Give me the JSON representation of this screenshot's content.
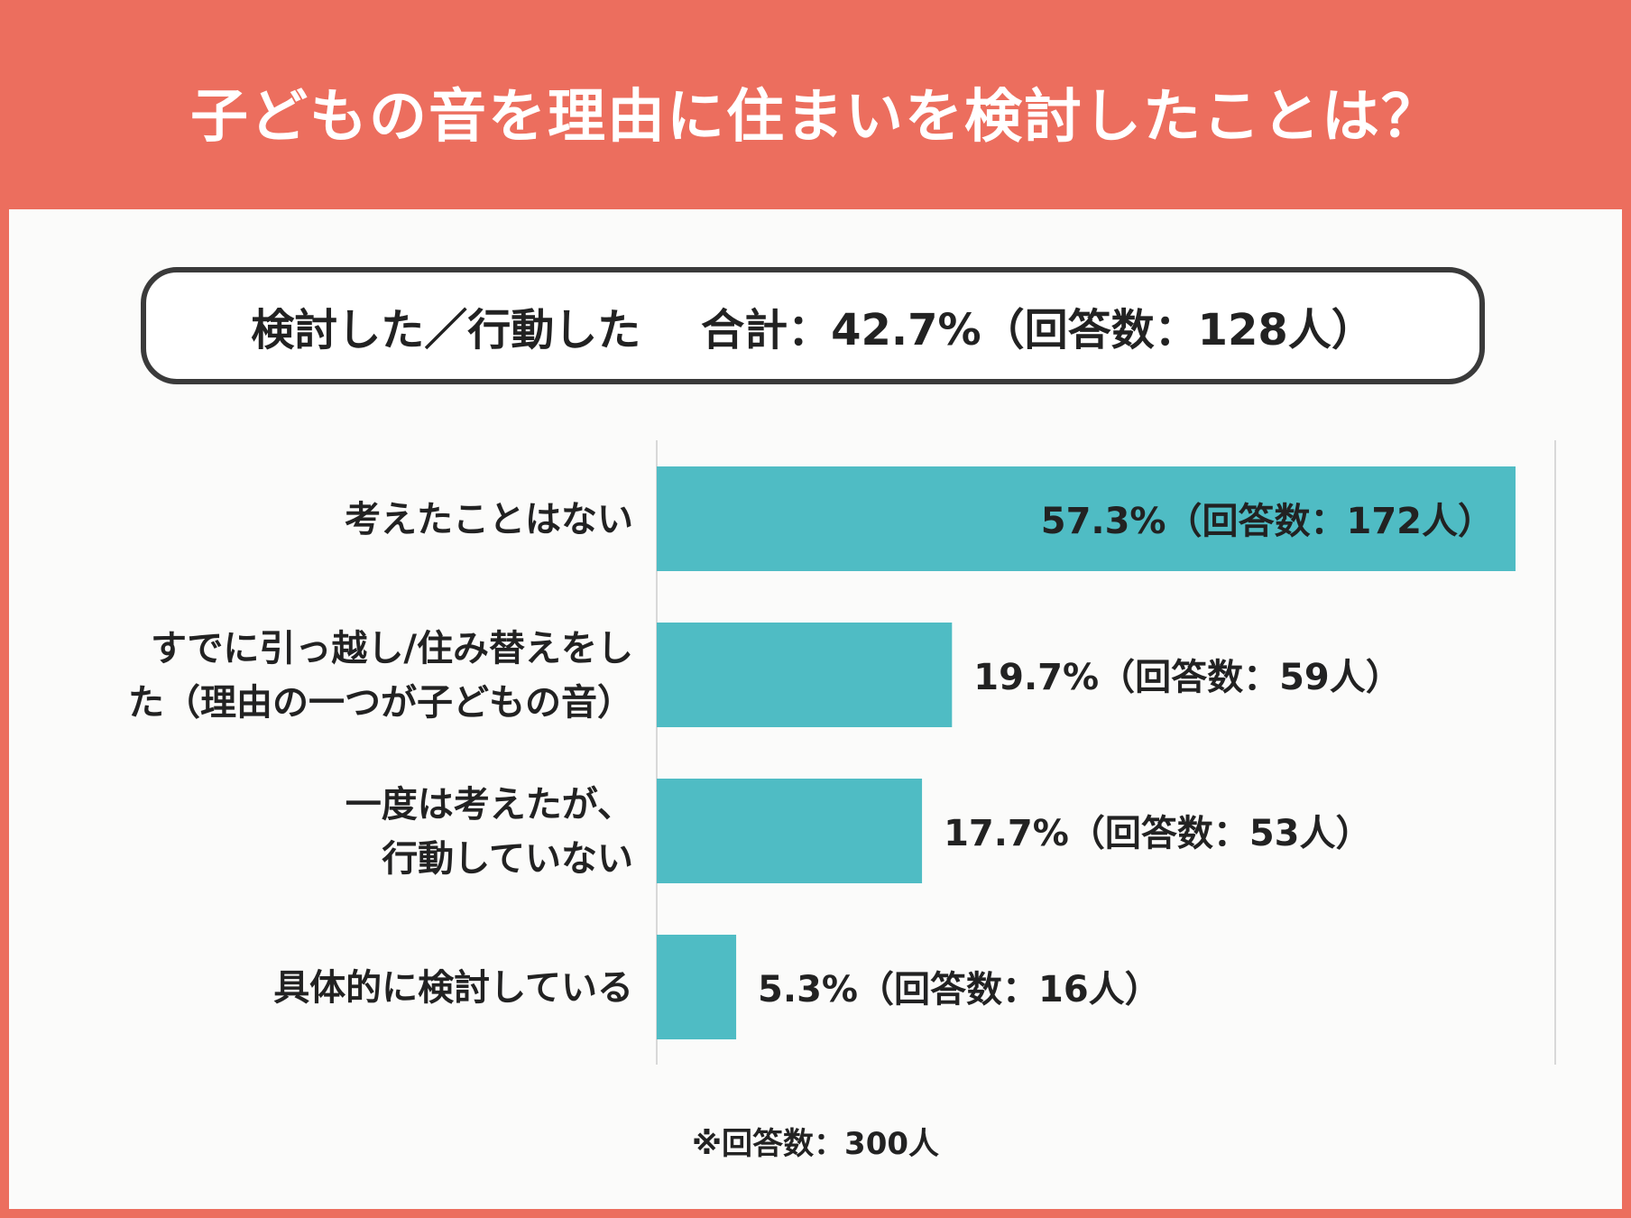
{
  "header": {
    "title": "子どもの音を理由に住まいを検討したことは？"
  },
  "summary": {
    "label": "検討した／行動した",
    "total_label": "合計：42.7%（回答数：128人）"
  },
  "chart_data": {
    "type": "bar",
    "orientation": "horizontal",
    "title": "子どもの音を理由に住まいを検討したことは？",
    "categories": [
      [
        "考えたことはない"
      ],
      [
        "すでに引っ越し/住み替えをし",
        "た（理由の一つが子どもの音）"
      ],
      [
        "一度は考えたが、",
        "行動していない"
      ],
      [
        "具体的に検討している"
      ]
    ],
    "values": [
      57.3,
      19.7,
      17.7,
      5.3
    ],
    "respondents": [
      172,
      59,
      53,
      16
    ],
    "value_labels": [
      "57.3%（回答数：172人）",
      "19.7%（回答数：59人）",
      "17.7%（回答数：53人）",
      "5.3%（回答数：16人）"
    ],
    "xlim": [
      0,
      57.3
    ],
    "bar_color": "#4fbcc4",
    "axis_color": "#d8d8d8",
    "unit": "%"
  },
  "note": "※回答数：300人"
}
